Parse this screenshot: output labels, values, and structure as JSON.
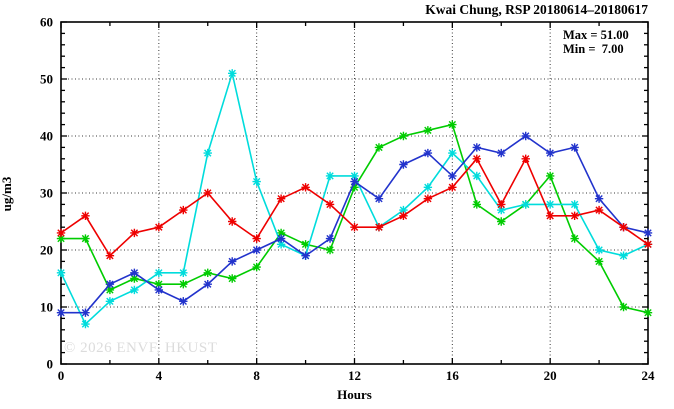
{
  "title": "Kwai Chung, RSP 20180614–20180617",
  "stats": {
    "max_label": "Max = 51.00",
    "min_label": "Min =  7.00"
  },
  "watermark": "© 2026 ENVF, HKUST",
  "chart_data": {
    "type": "line",
    "title": "Kwai Chung, RSP 20180614–20180617",
    "xlabel": "Hours",
    "ylabel": "ug/m3",
    "xlim": [
      0,
      24
    ],
    "ylim": [
      0,
      60
    ],
    "x_major_ticks": [
      0,
      4,
      8,
      12,
      16,
      20,
      24
    ],
    "y_major_ticks": [
      0,
      10,
      20,
      30,
      40,
      50,
      60
    ],
    "minor_tick_step": 2,
    "grid_x": [
      4,
      8,
      12,
      16,
      20
    ],
    "grid_y": [
      10,
      20,
      30,
      40,
      50
    ],
    "grid_style": "dotted",
    "legend_position": "none",
    "max_value": 51.0,
    "min_value": 7.0,
    "x": [
      0,
      1,
      2,
      3,
      4,
      5,
      6,
      7,
      8,
      9,
      10,
      11,
      12,
      13,
      14,
      15,
      16,
      17,
      18,
      19,
      20,
      21,
      22,
      23,
      24
    ],
    "series": [
      {
        "name": "series-green",
        "color": "#00cc00",
        "values": [
          22,
          22,
          13,
          15,
          14,
          14,
          16,
          15,
          17,
          23,
          21,
          20,
          31,
          38,
          40,
          41,
          42,
          28,
          25,
          28,
          33,
          22,
          18,
          10,
          9
        ]
      },
      {
        "name": "series-cyan",
        "color": "#00dcdc",
        "values": [
          16,
          7,
          11,
          13,
          16,
          16,
          37,
          51,
          32,
          21,
          19,
          33,
          33,
          24,
          27,
          31,
          37,
          33,
          27,
          28,
          28,
          28,
          20,
          19,
          21
        ]
      },
      {
        "name": "series-blue",
        "color": "#2233cc",
        "values": [
          9,
          9,
          14,
          16,
          13,
          11,
          14,
          18,
          20,
          22,
          19,
          22,
          32,
          29,
          35,
          37,
          33,
          38,
          37,
          40,
          37,
          38,
          29,
          24,
          23
        ]
      },
      {
        "name": "series-red",
        "color": "#ee0000",
        "values": [
          23,
          26,
          19,
          23,
          24,
          27,
          30,
          25,
          22,
          29,
          31,
          28,
          24,
          24,
          26,
          29,
          31,
          36,
          28,
          36,
          26,
          26,
          27,
          24,
          21
        ]
      }
    ]
  }
}
